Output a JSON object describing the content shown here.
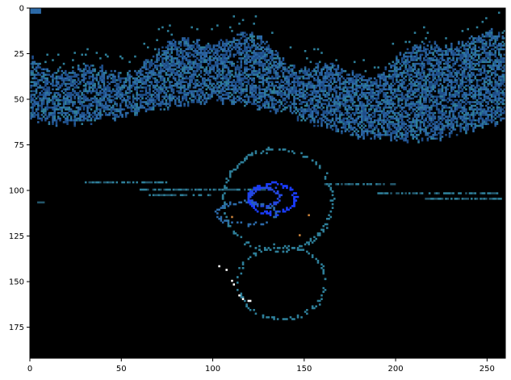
{
  "chart_data": {
    "type": "heatmap",
    "title": "",
    "xlabel": "",
    "ylabel": "",
    "xlim": [
      0,
      260
    ],
    "ylim": [
      192,
      0
    ],
    "x_ticks": [
      0,
      50,
      100,
      150,
      200,
      250
    ],
    "y_ticks": [
      0,
      25,
      50,
      75,
      100,
      125,
      150,
      175
    ],
    "x_tick_labels": [
      "0",
      "50",
      "100",
      "150",
      "200",
      "250"
    ],
    "y_tick_labels": [
      "0",
      "25",
      "50",
      "75",
      "100",
      "125",
      "150",
      "175"
    ],
    "image_width": 260,
    "image_height": 192,
    "grid": false,
    "background_color": "#000000",
    "colors": {
      "deep_blue": "#1f4e8c",
      "mid_blue": "#2c6aa8",
      "teal": "#2e7f99",
      "bright_blue": "#1a3cff",
      "orange": "#c8813a",
      "white": "#ffffff"
    },
    "regions": [
      {
        "name": "wave-band",
        "color": "mid_blue",
        "x_range": [
          0,
          260
        ],
        "y_range": [
          15,
          75
        ]
      },
      {
        "name": "upper-ring",
        "color": "teal",
        "center": [
          135,
          105
        ],
        "radius_x": 30,
        "radius_y": 28
      },
      {
        "name": "inner-ring",
        "color": "bright_blue",
        "center": [
          132,
          104
        ],
        "radius_x": 13,
        "radius_y": 8
      },
      {
        "name": "lower-ring",
        "color": "teal",
        "center": [
          137,
          150
        ],
        "radius_x": 24,
        "radius_y": 20
      },
      {
        "name": "horizontal-streaks",
        "color": "teal",
        "x_range": [
          30,
          260
        ],
        "y_range": [
          95,
          106
        ]
      },
      {
        "name": "white-speckles",
        "color": "white",
        "x_range": [
          107,
          122
        ],
        "y_range": [
          140,
          165
        ]
      },
      {
        "name": "orange-speckles",
        "color": "orange",
        "x_range": [
          110,
          150
        ],
        "y_range": [
          113,
          124
        ]
      }
    ]
  }
}
